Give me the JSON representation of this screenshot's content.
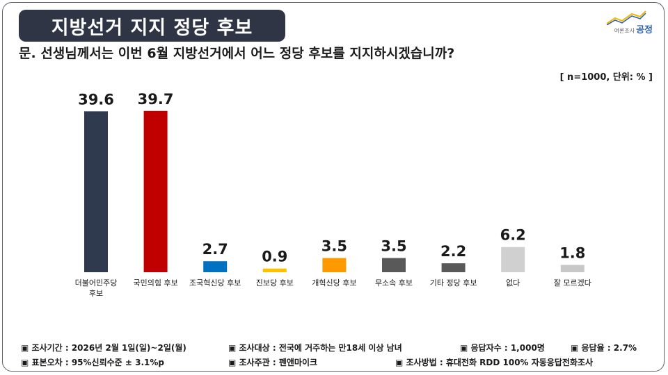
{
  "header": {
    "title": "지방선거 지지 정당 후보",
    "logo_sub": "여론조사",
    "logo_name": "공정"
  },
  "question": "문. 선생님께서는 이번 6월 지방선거에서 어느 정당 후보를 지지하시겠습니까?",
  "unit_note": "[ n=1000, 단위: % ]",
  "chart_data": {
    "type": "bar",
    "categories": [
      "더불어민주당 후보",
      "국민의힘 후보",
      "조국혁신당 후보",
      "진보당 후보",
      "개혁신당 후보",
      "무소속 후보",
      "기타 정당 후보",
      "없다",
      "잘 모르겠다"
    ],
    "category_lines": [
      [
        "더불어민주당",
        "후보"
      ],
      [
        "국민의힘 후보"
      ],
      [
        "조국혁신당 후보"
      ],
      [
        "진보당 후보"
      ],
      [
        "개혁신당 후보"
      ],
      [
        "무소속 후보"
      ],
      [
        "기타 정당 후보"
      ],
      [
        "없다"
      ],
      [
        "잘 모르겠다"
      ]
    ],
    "values": [
      39.6,
      39.7,
      2.7,
      0.9,
      3.5,
      3.5,
      2.2,
      6.2,
      1.8
    ],
    "value_labels": [
      "39.6",
      "39.7",
      "2.7",
      "0.9",
      "3.5",
      "3.5",
      "2.2",
      "6.2",
      "1.8"
    ],
    "colors": [
      "#2f3a4e",
      "#c00000",
      "#0070c0",
      "#ffc000",
      "#ff9900",
      "#595959",
      "#595959",
      "#d0d0d0",
      "#c8c8c8"
    ],
    "ylim": [
      0,
      40
    ],
    "grid": false,
    "legend": "none"
  },
  "footer": {
    "period": "▣ 조사기간 : 2026년 2월 1일(일)~2일(월)",
    "target": "▣ 조사대상 : 전국에 거주하는 만18세 이상 남녀",
    "respondents": "▣ 응답자수 : 1,000명",
    "response_rate": "▣ 응답율 : 2.7%",
    "error": "▣ 표본오차 : 95%신뢰수준 ± 3.1%p",
    "host": "▣ 조사주관 : 펜앤마이크",
    "method": "▣ 조사방법 : 휴대전화 RDD 100% 자동응답전화조사"
  }
}
